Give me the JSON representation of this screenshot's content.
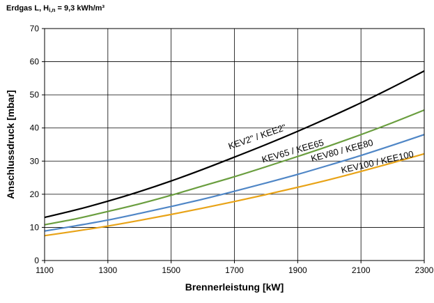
{
  "chart_data": {
    "type": "line",
    "title_parts": {
      "pre": "Erdgas L, H",
      "sub": "i,n",
      "post": " = 9,3 kWh/m³"
    },
    "xlabel": "Brennerleistung [kW]",
    "ylabel": "Anschlussdruck [mbar]",
    "xlim": [
      1100,
      2300
    ],
    "ylim": [
      0,
      70
    ],
    "x_ticks": [
      1100,
      1300,
      1500,
      1700,
      1900,
      2100,
      2300
    ],
    "y_ticks": [
      0,
      10,
      20,
      30,
      40,
      50,
      60,
      70
    ],
    "grid": true,
    "legend": "none",
    "x": [
      1100,
      1200,
      1300,
      1400,
      1500,
      1600,
      1700,
      1800,
      1900,
      2000,
      2100,
      2200,
      2300
    ],
    "series": [
      {
        "name": "KEV2\" / KEE2\"",
        "color": "#000000",
        "values": [
          13.0,
          15.3,
          17.9,
          20.8,
          24.0,
          27.5,
          31.2,
          35.0,
          39.0,
          43.2,
          47.6,
          52.3,
          57.2
        ]
      },
      {
        "name": "KEV65 / KEE65",
        "color": "#6a9e3f",
        "values": [
          10.8,
          12.6,
          14.8,
          17.1,
          19.7,
          22.5,
          25.3,
          28.3,
          31.4,
          34.6,
          38.0,
          41.6,
          45.4
        ]
      },
      {
        "name": "KEV80 / KEE80",
        "color": "#4f86c6",
        "values": [
          8.9,
          10.5,
          12.2,
          14.2,
          16.3,
          18.5,
          20.9,
          23.4,
          26.0,
          28.8,
          31.7,
          34.8,
          38.0
        ]
      },
      {
        "name": "KEV100 / KEE100",
        "color": "#e8a317",
        "values": [
          7.5,
          8.9,
          10.4,
          12.1,
          13.9,
          15.8,
          17.8,
          19.9,
          22.1,
          24.4,
          26.9,
          29.5,
          32.2
        ]
      }
    ]
  }
}
